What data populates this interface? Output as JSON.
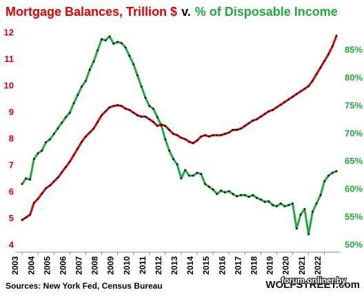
{
  "chart_data": {
    "type": "line",
    "title_connector": "v.",
    "source": "Sources: New York Fed, Census Bureau",
    "watermark": "WOLFSTREET.com",
    "overlay_text": "forum.onliner.by",
    "x": [
      2003,
      2003.25,
      2003.5,
      2003.75,
      2004,
      2004.25,
      2004.5,
      2004.75,
      2005,
      2005.25,
      2005.5,
      2005.75,
      2006,
      2006.25,
      2006.5,
      2006.75,
      2007,
      2007.25,
      2007.5,
      2007.75,
      2008,
      2008.25,
      2008.5,
      2008.75,
      2009,
      2009.25,
      2009.5,
      2009.75,
      2010,
      2010.25,
      2010.5,
      2010.75,
      2011,
      2011.25,
      2011.5,
      2011.75,
      2012,
      2012.25,
      2012.5,
      2012.75,
      2013,
      2013.25,
      2013.5,
      2013.75,
      2014,
      2014.25,
      2014.5,
      2014.75,
      2015,
      2015.25,
      2015.5,
      2015.75,
      2016,
      2016.25,
      2016.5,
      2016.75,
      2017,
      2017.25,
      2017.5,
      2017.75,
      2018,
      2018.25,
      2018.5,
      2018.75,
      2019,
      2019.25,
      2019.5,
      2019.75,
      2020,
      2020.25,
      2020.5,
      2020.75,
      2021,
      2021.25,
      2021.5,
      2021.75,
      2022,
      2022.25,
      2022.5,
      2022.75
    ],
    "xlim": [
      2003,
      2022.75
    ],
    "xticks": [
      2003,
      2004,
      2005,
      2006,
      2007,
      2008,
      2009,
      2010,
      2011,
      2012,
      2013,
      2014,
      2015,
      2016,
      2017,
      2018,
      2019,
      2020,
      2021,
      2022
    ],
    "ylim": [
      4,
      12
    ],
    "yticks": [
      4,
      5,
      6,
      7,
      8,
      9,
      10,
      11,
      12
    ],
    "y2lim": [
      50,
      88.1
    ],
    "y2ticks": [
      {
        "value": 50,
        "label": "50%"
      },
      {
        "value": 55,
        "label": "55%"
      },
      {
        "value": 60,
        "label": "60%"
      },
      {
        "value": 65,
        "label": "65%"
      },
      {
        "value": 70,
        "label": "70%"
      },
      {
        "value": 75,
        "label": "75%"
      },
      {
        "value": 80,
        "label": "80%"
      },
      {
        "value": 85,
        "label": "85%"
      }
    ],
    "marker_color": "#111111",
    "series": [
      {
        "name": "Mortgage Balances, Trillion $",
        "color": "#e00000",
        "axis": "y",
        "values": [
          4.95,
          5.05,
          5.15,
          5.6,
          5.75,
          5.95,
          6.15,
          6.25,
          6.4,
          6.55,
          6.75,
          6.95,
          7.15,
          7.4,
          7.65,
          7.9,
          8.1,
          8.25,
          8.4,
          8.65,
          8.9,
          9.05,
          9.2,
          9.25,
          9.28,
          9.25,
          9.15,
          9.1,
          9.0,
          8.9,
          8.85,
          8.85,
          8.75,
          8.65,
          8.5,
          8.55,
          8.5,
          8.35,
          8.2,
          8.15,
          8.05,
          8.0,
          7.9,
          7.85,
          7.95,
          8.1,
          8.15,
          8.1,
          8.15,
          8.15,
          8.15,
          8.2,
          8.25,
          8.35,
          8.35,
          8.4,
          8.5,
          8.6,
          8.7,
          8.75,
          8.85,
          8.95,
          9.05,
          9.1,
          9.2,
          9.3,
          9.4,
          9.5,
          9.6,
          9.7,
          9.8,
          9.9,
          10.0,
          10.2,
          10.45,
          10.7,
          10.95,
          11.2,
          11.5,
          11.9
        ]
      },
      {
        "name": "% of Disposable Income",
        "color": "#1faa3c",
        "axis": "y2",
        "values": [
          61,
          62,
          61.8,
          65.5,
          66.5,
          67,
          68.5,
          69,
          70,
          71,
          72,
          73,
          73.8,
          75.5,
          77,
          78.5,
          79.5,
          81.5,
          83,
          85,
          87,
          86.8,
          87.5,
          86.2,
          86.5,
          86.3,
          85.5,
          84,
          82.5,
          80.5,
          78.5,
          76.5,
          75,
          74.5,
          73,
          71.5,
          69,
          67,
          65.5,
          64.5,
          62,
          63.5,
          62.5,
          62.5,
          63,
          62.8,
          61,
          60.5,
          60,
          59.2,
          59.8,
          59.5,
          59.7,
          59.2,
          58.8,
          59,
          59,
          58.7,
          59,
          58.5,
          58.2,
          57.8,
          57.9,
          57.2,
          57,
          57.5,
          57,
          57.2,
          57.5,
          53,
          55.5,
          56.5,
          52,
          56,
          57.5,
          59,
          61.5,
          62.5,
          63,
          63.3
        ]
      }
    ]
  }
}
